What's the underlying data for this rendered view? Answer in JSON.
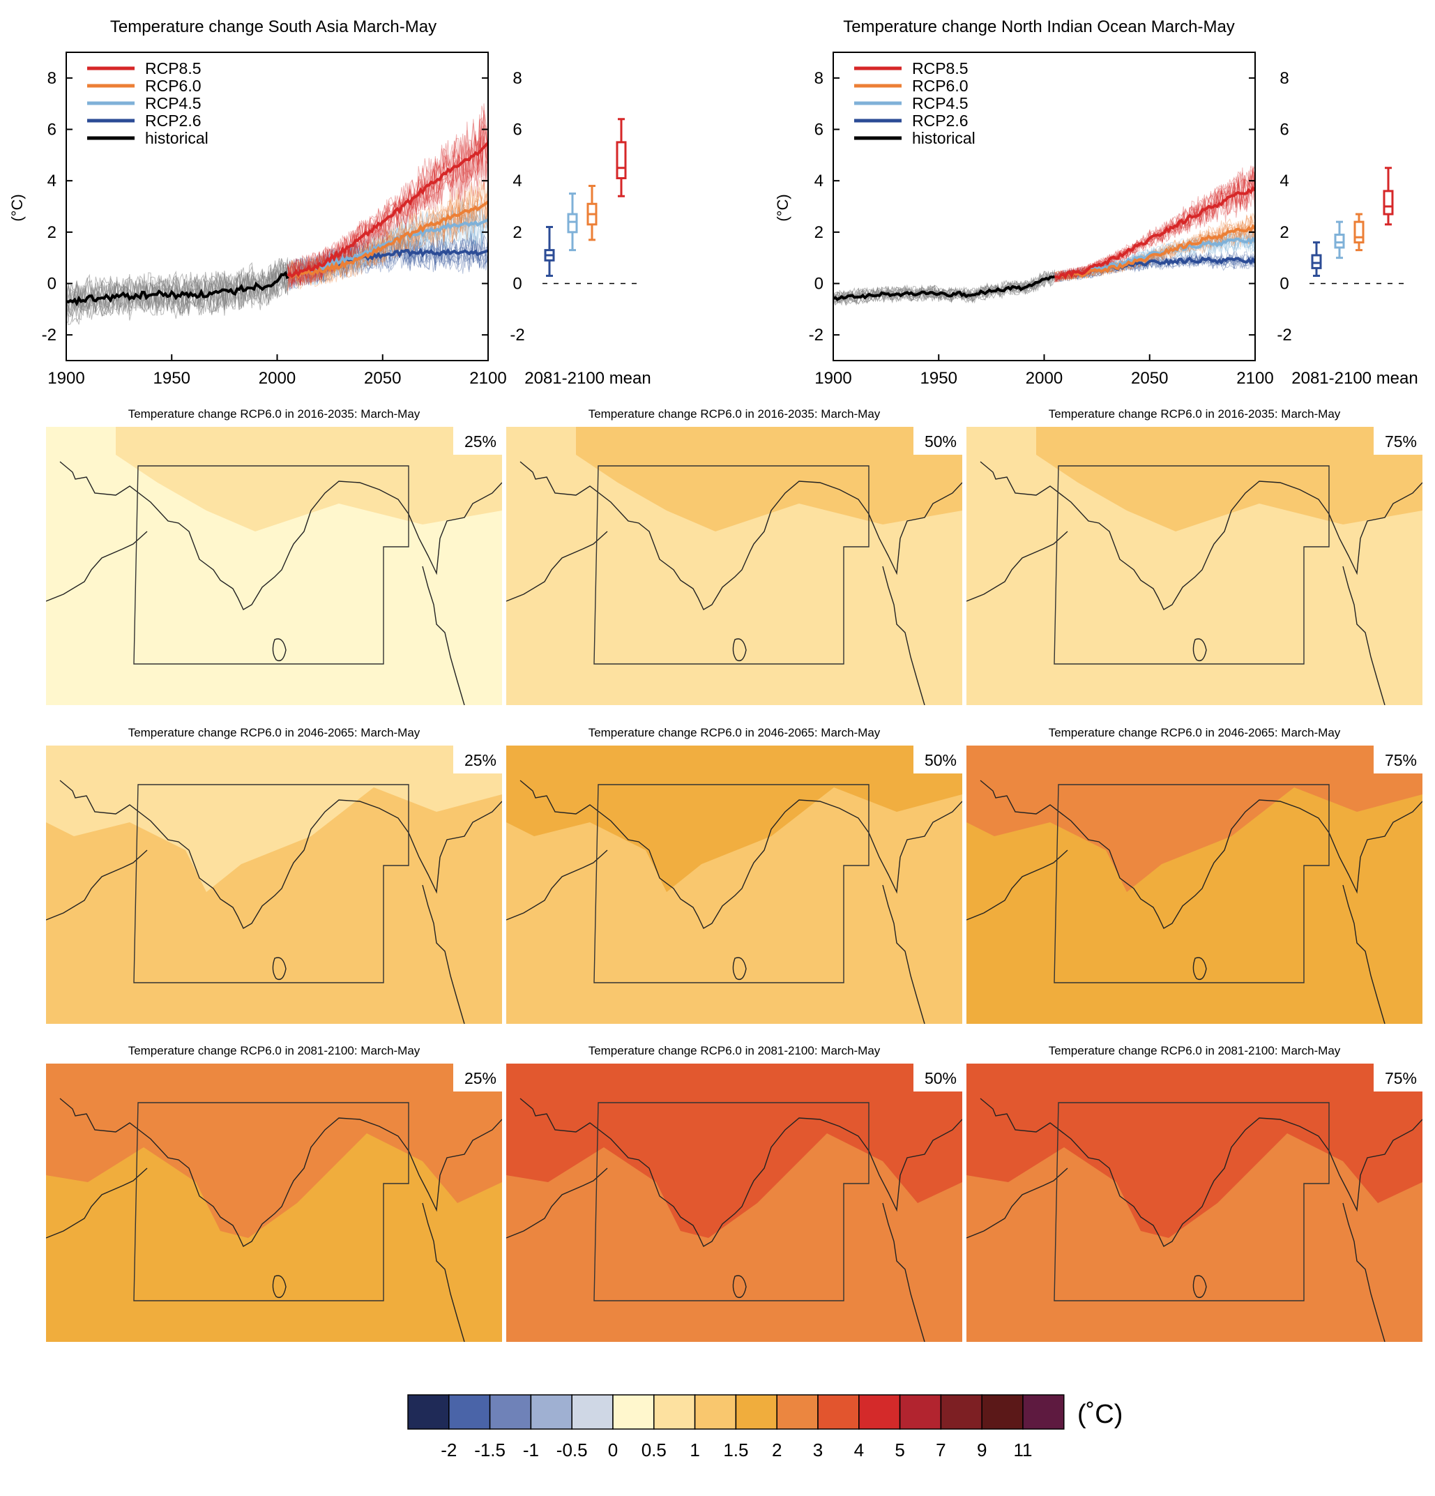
{
  "colors": {
    "rcp85": "#d62728",
    "rcp60": "#ec7f36",
    "rcp45": "#7fb1d8",
    "rcp26": "#2c4c96",
    "historical": "#000000",
    "ensemble_hist": "#808080"
  },
  "chart_data": [
    {
      "type": "line",
      "title": "Temperature change South Asia March-May",
      "ylabel": "(°C)",
      "xlim": [
        1900,
        2100
      ],
      "ylim": [
        -3,
        9
      ],
      "xticks": [
        1900,
        1950,
        2000,
        2050,
        2100
      ],
      "yticks": [
        -2,
        0,
        2,
        4,
        6,
        8
      ],
      "legend": {
        "position": "top-left",
        "entries": [
          "RCP8.5",
          "RCP6.0",
          "RCP4.5",
          "RCP2.6",
          "historical"
        ]
      },
      "series": [
        {
          "name": "historical",
          "x": [
            1900,
            1905,
            1910,
            1915,
            1920,
            1925,
            1930,
            1935,
            1940,
            1945,
            1950,
            1955,
            1960,
            1965,
            1970,
            1975,
            1980,
            1985,
            1990,
            1995,
            2000,
            2005
          ],
          "values": [
            -0.8,
            -0.7,
            -0.6,
            -0.6,
            -0.55,
            -0.5,
            -0.5,
            -0.45,
            -0.45,
            -0.4,
            -0.45,
            -0.45,
            -0.4,
            -0.45,
            -0.4,
            -0.35,
            -0.3,
            -0.15,
            -0.1,
            -0.1,
            0.2,
            0.3
          ]
        },
        {
          "name": "RCP2.6",
          "x": [
            2005,
            2020,
            2030,
            2040,
            2050,
            2060,
            2070,
            2080,
            2090,
            2100
          ],
          "values": [
            0.3,
            0.6,
            0.8,
            1.0,
            1.1,
            1.2,
            1.2,
            1.2,
            1.2,
            1.2
          ]
        },
        {
          "name": "RCP4.5",
          "x": [
            2005,
            2020,
            2030,
            2040,
            2050,
            2060,
            2070,
            2080,
            2090,
            2100
          ],
          "values": [
            0.3,
            0.6,
            0.9,
            1.1,
            1.5,
            1.8,
            2.0,
            2.2,
            2.3,
            2.4
          ]
        },
        {
          "name": "RCP6.0",
          "x": [
            2005,
            2020,
            2030,
            2040,
            2050,
            2060,
            2070,
            2080,
            2090,
            2100
          ],
          "values": [
            0.3,
            0.5,
            0.7,
            1.0,
            1.4,
            1.8,
            2.2,
            2.5,
            2.8,
            3.1
          ]
        },
        {
          "name": "RCP8.5",
          "x": [
            2005,
            2020,
            2030,
            2040,
            2050,
            2060,
            2070,
            2080,
            2090,
            2100
          ],
          "values": [
            0.3,
            0.7,
            1.2,
            1.8,
            2.4,
            3.0,
            3.7,
            4.3,
            4.8,
            5.4
          ]
        }
      ],
      "boxplots": {
        "label": "2081-2100 mean",
        "items": [
          {
            "name": "RCP2.6",
            "min": 0.3,
            "q1": 0.9,
            "median": 1.1,
            "q3": 1.3,
            "max": 2.2
          },
          {
            "name": "RCP4.5",
            "min": 1.3,
            "q1": 2.0,
            "median": 2.4,
            "q3": 2.7,
            "max": 3.5
          },
          {
            "name": "RCP6.0",
            "min": 1.7,
            "q1": 2.3,
            "median": 2.7,
            "q3": 3.1,
            "max": 3.8
          },
          {
            "name": "RCP8.5",
            "min": 3.4,
            "q1": 4.1,
            "median": 4.5,
            "q3": 5.5,
            "max": 6.4
          }
        ]
      }
    },
    {
      "type": "line",
      "title": "Temperature change North Indian Ocean March-May",
      "ylabel": "(°C)",
      "xlim": [
        1900,
        2100
      ],
      "ylim": [
        -3,
        9
      ],
      "xticks": [
        1900,
        1950,
        2000,
        2050,
        2100
      ],
      "yticks": [
        -2,
        0,
        2,
        4,
        6,
        8
      ],
      "legend": {
        "position": "top-left",
        "entries": [
          "RCP8.5",
          "RCP6.0",
          "RCP4.5",
          "RCP2.6",
          "historical"
        ]
      },
      "series": [
        {
          "name": "historical",
          "x": [
            1900,
            1905,
            1910,
            1915,
            1920,
            1925,
            1930,
            1935,
            1940,
            1945,
            1950,
            1955,
            1960,
            1965,
            1970,
            1975,
            1980,
            1985,
            1990,
            1995,
            2000,
            2005
          ],
          "values": [
            -0.6,
            -0.55,
            -0.5,
            -0.5,
            -0.45,
            -0.4,
            -0.45,
            -0.4,
            -0.4,
            -0.35,
            -0.4,
            -0.45,
            -0.4,
            -0.5,
            -0.35,
            -0.3,
            -0.25,
            -0.15,
            -0.2,
            -0.05,
            0.15,
            0.25
          ]
        },
        {
          "name": "RCP2.6",
          "x": [
            2005,
            2020,
            2030,
            2040,
            2050,
            2060,
            2070,
            2080,
            2090,
            2100
          ],
          "values": [
            0.25,
            0.4,
            0.55,
            0.7,
            0.8,
            0.85,
            0.9,
            0.9,
            0.9,
            0.9
          ]
        },
        {
          "name": "RCP4.5",
          "x": [
            2005,
            2020,
            2030,
            2040,
            2050,
            2060,
            2070,
            2080,
            2090,
            2100
          ],
          "values": [
            0.25,
            0.45,
            0.65,
            0.85,
            1.1,
            1.3,
            1.45,
            1.55,
            1.65,
            1.7
          ]
        },
        {
          "name": "RCP6.0",
          "x": [
            2005,
            2020,
            2030,
            2040,
            2050,
            2060,
            2070,
            2080,
            2090,
            2100
          ],
          "values": [
            0.25,
            0.4,
            0.55,
            0.75,
            1.0,
            1.3,
            1.55,
            1.8,
            2.0,
            2.2
          ]
        },
        {
          "name": "RCP8.5",
          "x": [
            2005,
            2020,
            2030,
            2040,
            2050,
            2060,
            2070,
            2080,
            2090,
            2100
          ],
          "values": [
            0.25,
            0.5,
            0.85,
            1.25,
            1.7,
            2.15,
            2.6,
            3.0,
            3.4,
            3.7
          ]
        }
      ],
      "boxplots": {
        "label": "2081-2100 mean",
        "items": [
          {
            "name": "RCP2.6",
            "min": 0.3,
            "q1": 0.6,
            "median": 0.8,
            "q3": 1.1,
            "max": 1.6
          },
          {
            "name": "RCP4.5",
            "min": 1.0,
            "q1": 1.4,
            "median": 1.6,
            "q3": 1.9,
            "max": 2.4
          },
          {
            "name": "RCP6.0",
            "min": 1.3,
            "q1": 1.6,
            "median": 1.8,
            "q3": 2.4,
            "max": 2.7
          },
          {
            "name": "RCP8.5",
            "min": 2.3,
            "q1": 2.7,
            "median": 3.0,
            "q3": 3.6,
            "max": 4.5
          }
        ]
      }
    },
    {
      "type": "heatmap",
      "description_of_panels": "RCP6.0 March-May temperature change maps; rows = periods, columns = percentiles",
      "row_titles": [
        "Temperature change RCP6.0 in 2016-2035: March-May",
        "Temperature change RCP6.0 in 2046-2065: March-May",
        "Temperature change RCP6.0 in 2081-2100: March-May"
      ],
      "percentiles": [
        "25%",
        "50%",
        "75%"
      ],
      "panel_levels": [
        [
          {
            "base": 5,
            "patch": 6
          },
          {
            "base": 6,
            "patch": 7
          },
          {
            "base": 6,
            "patch": 7
          }
        ],
        [
          {
            "base": 7,
            "patch": 6
          },
          {
            "base": 7,
            "patch": 8
          },
          {
            "base": 8,
            "patch": 9
          }
        ],
        [
          {
            "base": 8,
            "patch": 9
          },
          {
            "base": 9,
            "patch": 10
          },
          {
            "base": 9,
            "patch": 10
          }
        ]
      ]
    }
  ],
  "colorbar": {
    "unit": "(˚C)",
    "colors": [
      "#1f2a57",
      "#4a64a8",
      "#6f82b8",
      "#9fb0d2",
      "#cfd7e5",
      "#fff7cd",
      "#fde1a0",
      "#f9c76e",
      "#f0ad3d",
      "#eb8640",
      "#e2552e",
      "#d42a2a",
      "#b2242f",
      "#7d1f23",
      "#5b1818",
      "#5e1a40"
    ],
    "labels": [
      "-2",
      "-1.5",
      "-1",
      "-0.5",
      "0",
      "0.5",
      "1",
      "1.5",
      "2",
      "3",
      "4",
      "5",
      "7",
      "9",
      "11"
    ]
  }
}
